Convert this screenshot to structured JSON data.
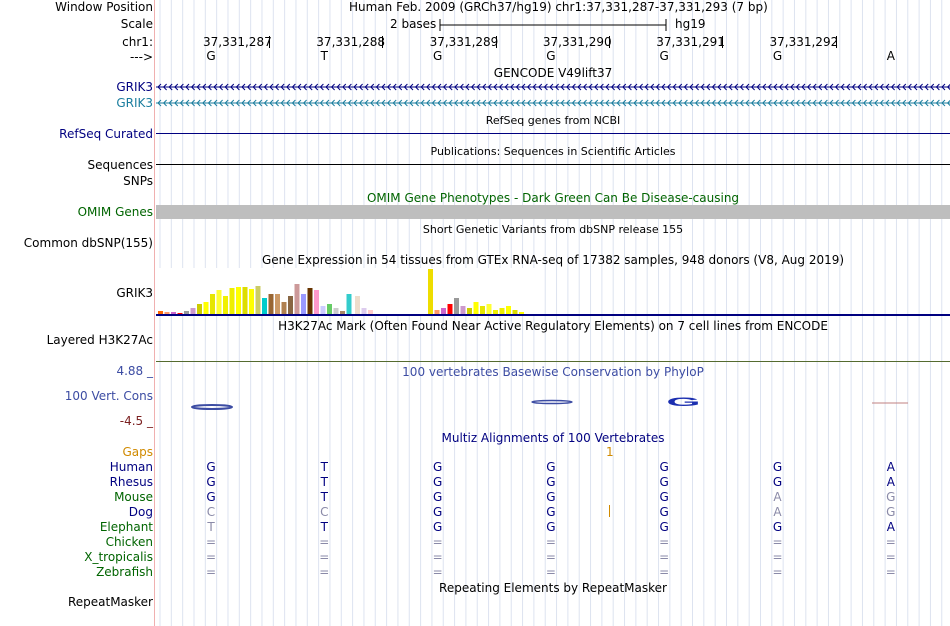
{
  "colors": {
    "navy": "#000080",
    "teal": "#1a7d9e",
    "green": "#006400",
    "phylo": "#3c4ca3",
    "orange": "#d08a00",
    "maroon": "#7a1f1f",
    "gray": "#707090"
  },
  "header": {
    "window_position_label": "Window Position",
    "window_position_value": "Human Feb. 2009 (GRCh37/hg19)   chr1:37,331,287-37,331,293 (7 bp)",
    "scale_label": "Scale",
    "scale_bar_text": "2 bases",
    "scale_assembly": "hg19",
    "chrom_label": "chr1:",
    "strand_label": "--->",
    "positions": [
      "37,331,287",
      "37,331,288",
      "37,331,289",
      "37,331,290",
      "37,331,291",
      "37,331,292"
    ],
    "bases": [
      "G",
      "T",
      "G",
      "G",
      "G",
      "G",
      "A"
    ]
  },
  "tracks": {
    "gencode": {
      "title": "GENCODE V49lift37",
      "items": [
        {
          "label": "GRIK3",
          "color": "#000080"
        },
        {
          "label": "GRIK3",
          "color": "#1a7d9e"
        }
      ]
    },
    "refseq": {
      "label": "RefSeq Curated",
      "desc": "RefSeq genes from NCBI"
    },
    "pubs": {
      "label": "Sequences",
      "desc": "Publications: Sequences in Scientific Articles"
    },
    "snps": {
      "label": "SNPs"
    },
    "omim": {
      "label": "OMIM Genes",
      "desc": "OMIM Gene Phenotypes - Dark Green Can Be Disease-causing"
    },
    "dbsnp": {
      "label": "Common dbSNP(155)",
      "desc": "Short Genetic Variants from dbSNP release 155"
    },
    "gtex": {
      "label": "GRIK3",
      "desc": "Gene Expression in 54 tissues from GTEx RNA-seq of 17382 samples, 948 donors (V8, Aug 2019)"
    },
    "h3k27ac": {
      "label": "Layered H3K27Ac",
      "desc": "H3K27Ac Mark (Often Found Near Active Regulatory Elements) on 7 cell lines from ENCODE"
    },
    "phylop": {
      "label": "100 Vert. Cons",
      "max": "4.88 _",
      "min": "-4.5 _",
      "desc": "100 vertebrates Basewise Conservation by PhyloP",
      "letter": "G"
    },
    "multiz": {
      "desc": "Multiz Alignments of 100 Vertebrates",
      "gaps_label": "Gaps",
      "gap_marker": "1",
      "species": [
        {
          "name": "Human",
          "color": "#000080",
          "bases": [
            "G",
            "T",
            "G",
            "G",
            "G",
            "G",
            "A"
          ],
          "faded": [
            false,
            false,
            false,
            false,
            false,
            false,
            false
          ]
        },
        {
          "name": "Rhesus",
          "color": "#000080",
          "bases": [
            "G",
            "T",
            "G",
            "G",
            "G",
            "G",
            "A"
          ],
          "faded": [
            false,
            false,
            false,
            false,
            false,
            false,
            false
          ]
        },
        {
          "name": "Mouse",
          "color": "#006400",
          "bases": [
            "G",
            "T",
            "G",
            "G",
            "G",
            "A",
            "G"
          ],
          "faded": [
            false,
            false,
            false,
            false,
            false,
            true,
            true
          ]
        },
        {
          "name": "Dog",
          "color": "#000080",
          "bases": [
            "C",
            "C",
            "G",
            "G",
            "G",
            "A",
            "G"
          ],
          "faded": [
            true,
            true,
            false,
            false,
            false,
            true,
            true
          ]
        },
        {
          "name": "Elephant",
          "color": "#006400",
          "bases": [
            "T",
            "T",
            "G",
            "G",
            "G",
            "G",
            "A"
          ],
          "faded": [
            true,
            false,
            false,
            false,
            false,
            false,
            false
          ]
        },
        {
          "name": "Chicken",
          "color": "#006400",
          "bases": [
            "=",
            "=",
            "=",
            "=",
            "=",
            "=",
            "="
          ],
          "faded": [
            true,
            true,
            true,
            true,
            true,
            true,
            true
          ]
        },
        {
          "name": "X_tropicalis",
          "color": "#006400",
          "bases": [
            "=",
            "=",
            "=",
            "=",
            "=",
            "=",
            "="
          ],
          "faded": [
            true,
            true,
            true,
            true,
            true,
            true,
            true
          ]
        },
        {
          "name": "Zebrafish",
          "color": "#006400",
          "bases": [
            "=",
            "=",
            "=",
            "=",
            "=",
            "=",
            "="
          ],
          "faded": [
            true,
            true,
            true,
            true,
            true,
            true,
            true
          ]
        }
      ]
    },
    "rmsk": {
      "label": "RepeatMasker",
      "desc": "Repeating Elements by RepeatMasker"
    }
  }
}
